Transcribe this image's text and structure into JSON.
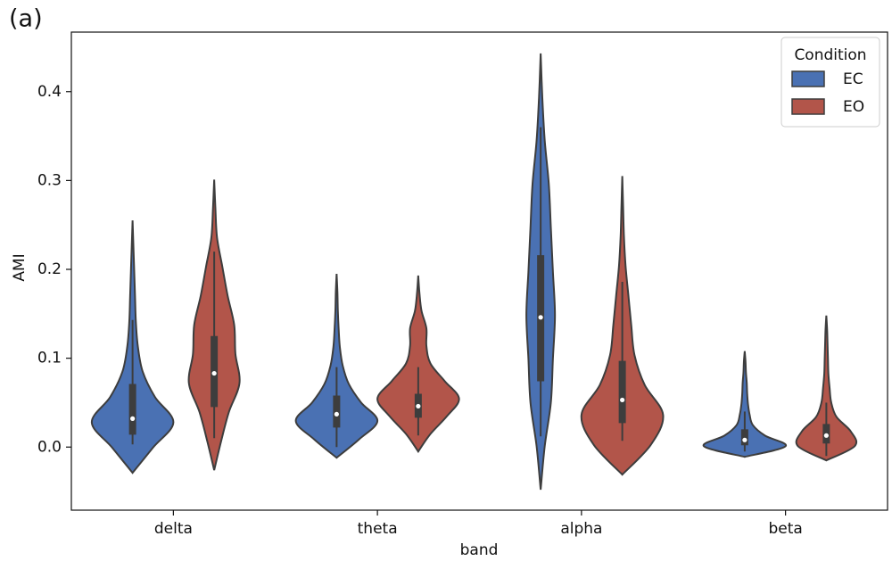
{
  "chart_data": {
    "type": "violin",
    "panel_label": "(a)",
    "x_label": "band",
    "y_label": "AMI",
    "categories": [
      "delta",
      "theta",
      "alpha",
      "beta"
    ],
    "ylim": [
      -0.071,
      0.467
    ],
    "yticks": [
      {
        "value": 0,
        "label": "0.0"
      },
      0.1,
      0.2,
      0.3,
      0.4
    ],
    "legend_title": "Condition",
    "legend_position": "upper right",
    "series": [
      {
        "name": "EC",
        "color": "#4a71b3",
        "extent": [
          [
            -0.029,
            0.255
          ],
          [
            -0.012,
            0.195
          ],
          [
            -0.048,
            0.443
          ],
          [
            -0.011,
            0.108
          ]
        ],
        "whisker_low": [
          0.003,
          0.0,
          0.012,
          -0.005
        ],
        "q1": [
          0.014,
          0.022,
          0.074,
          0.002
        ],
        "median": [
          0.032,
          0.037,
          0.146,
          0.008
        ],
        "q3": [
          0.071,
          0.058,
          0.216,
          0.02
        ],
        "whisker_high": [
          0.143,
          0.09,
          0.36,
          0.04
        ],
        "density": [
          [
            0,
            0.5,
            1.0,
            0.55,
            0.25,
            0.13,
            0.08,
            0.06,
            0.04,
            0.02,
            0
          ],
          [
            0,
            0.55,
            1.0,
            0.6,
            0.3,
            0.15,
            0.08,
            0.05,
            0.03,
            0.02,
            0
          ],
          [
            0,
            0.1,
            0.25,
            0.3,
            0.35,
            0.3,
            0.25,
            0.2,
            0.1,
            0.04,
            0
          ],
          [
            0,
            1.0,
            0.5,
            0.2,
            0.12,
            0.08,
            0.06,
            0.05,
            0.03,
            0.02,
            0
          ]
        ]
      },
      {
        "name": "EO",
        "color": "#b2554a",
        "extent": [
          [
            -0.026,
            0.301
          ],
          [
            -0.005,
            0.193
          ],
          [
            -0.031,
            0.305
          ],
          [
            -0.015,
            0.148
          ]
        ],
        "whisker_low": [
          0.01,
          0.013,
          0.007,
          -0.01
        ],
        "q1": [
          0.045,
          0.033,
          0.027,
          0.004
        ],
        "median": [
          0.083,
          0.046,
          0.053,
          0.013
        ],
        "q3": [
          0.125,
          0.06,
          0.097,
          0.026
        ],
        "whisker_high": [
          0.22,
          0.09,
          0.186,
          0.05
        ],
        "density": [
          [
            0,
            0.17,
            0.36,
            0.62,
            0.52,
            0.49,
            0.33,
            0.2,
            0.07,
            0.03,
            0
          ],
          [
            0,
            0.3,
            0.7,
            1.0,
            0.65,
            0.3,
            0.2,
            0.2,
            0.08,
            0.03,
            0
          ],
          [
            0,
            0.7,
            1.0,
            0.55,
            0.3,
            0.22,
            0.15,
            0.08,
            0.04,
            0.02,
            0
          ],
          [
            0,
            0.7,
            0.6,
            0.25,
            0.12,
            0.08,
            0.05,
            0.04,
            0.03,
            0.02,
            0
          ]
        ]
      }
    ]
  }
}
